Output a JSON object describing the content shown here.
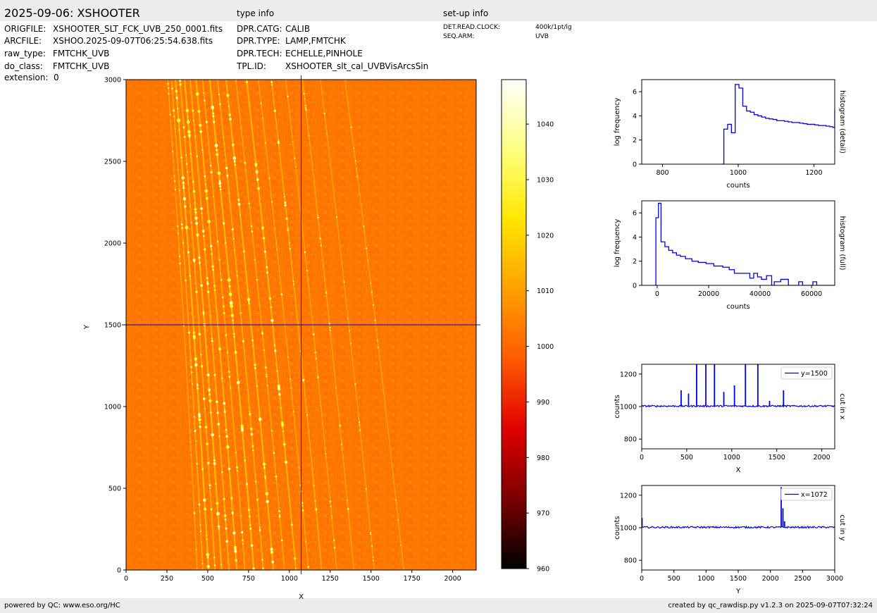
{
  "header": {
    "title": "2025-09-06: XSHOOTER",
    "type_info_label": "type info",
    "setup_info_label": "set-up info"
  },
  "file_info": [
    {
      "key": "ORIGFILE:",
      "value": "XSHOOTER_SLT_FCK_UVB_250_0001.fits"
    },
    {
      "key": "ARCFILE:",
      "value": "XSHOO.2025-09-07T06:25:54.638.fits"
    },
    {
      "key": "raw_type:",
      "value": "FMTCHK_UVB"
    },
    {
      "key": "do_class:",
      "value": "FMTCHK_UVB"
    },
    {
      "key": "extension:",
      "value": "0"
    }
  ],
  "type_info": [
    {
      "key": "DPR.CATG:",
      "value": "CALIB"
    },
    {
      "key": "DPR.TYPE:",
      "value": "LAMP,FMTCHK"
    },
    {
      "key": "DPR.TECH:",
      "value": "ECHELLE,PINHOLE"
    },
    {
      "key": "TPL.ID:",
      "value": "XSHOOTER_slt_cal_UVBVisArcsSin"
    }
  ],
  "setup_info": [
    {
      "key": "DET.READ.CLOCK:",
      "value": "400k/1pt/lg"
    },
    {
      "key": "SEQ.ARM:",
      "value": "UVB"
    }
  ],
  "footer": {
    "left": "powered by QC: www.eso.org/HC",
    "right": "created by qc_rawdisp.py v1.2.3 on 2025-09-07T07:32:24"
  },
  "chart_data": [
    {
      "type": "heatmap",
      "name": "raw-image",
      "xlabel": "X",
      "ylabel": "Y",
      "xlim": [
        0,
        2144
      ],
      "ylim": [
        0,
        3000
      ],
      "xticks": [
        0,
        250,
        500,
        750,
        1000,
        1250,
        1500,
        1750,
        2000
      ],
      "yticks": [
        0,
        500,
        1000,
        1500,
        2000,
        2500,
        3000
      ],
      "crosshair": {
        "x": 1072,
        "y": 1500
      },
      "background_level": 1003,
      "orders": [
        {
          "x_bottom": 435,
          "x_top": 255,
          "strength": 0.3
        },
        {
          "x_bottom": 470,
          "x_top": 278,
          "strength": 0.5
        },
        {
          "x_bottom": 505,
          "x_top": 302,
          "strength": 1.0
        },
        {
          "x_bottom": 545,
          "x_top": 330,
          "strength": 0.6
        },
        {
          "x_bottom": 585,
          "x_top": 358,
          "strength": 1.0
        },
        {
          "x_bottom": 630,
          "x_top": 392,
          "strength": 0.7
        },
        {
          "x_bottom": 678,
          "x_top": 428,
          "strength": 0.9
        },
        {
          "x_bottom": 728,
          "x_top": 468,
          "strength": 0.5
        },
        {
          "x_bottom": 782,
          "x_top": 512,
          "strength": 1.0
        },
        {
          "x_bottom": 840,
          "x_top": 560,
          "strength": 0.6
        },
        {
          "x_bottom": 902,
          "x_top": 612,
          "strength": 0.9
        },
        {
          "x_bottom": 970,
          "x_top": 672,
          "strength": 0.4
        },
        {
          "x_bottom": 1040,
          "x_top": 738,
          "strength": 0.8
        },
        {
          "x_bottom": 1117,
          "x_top": 810,
          "strength": 0.35
        },
        {
          "x_bottom": 1198,
          "x_top": 890,
          "strength": 0.5
        },
        {
          "x_bottom": 1290,
          "x_top": 978,
          "strength": 0.3
        },
        {
          "x_bottom": 1395,
          "x_top": 1080,
          "strength": 0.35
        },
        {
          "x_bottom": 1520,
          "x_top": 1190,
          "strength": 0.25
        },
        {
          "x_bottom": 1700,
          "x_top": 1340,
          "strength": 0.25
        }
      ]
    },
    {
      "type": "colorbar",
      "name": "colorbar",
      "range": [
        960,
        1048
      ],
      "ticks": [
        960,
        970,
        980,
        990,
        1000,
        1010,
        1020,
        1030,
        1040
      ],
      "colormap": [
        "#000000",
        "#7a0000",
        "#e00000",
        "#ff5a00",
        "#ffa000",
        "#ffe600",
        "#ffff80",
        "#ffffff"
      ]
    },
    {
      "type": "line",
      "name": "histogram-detail",
      "ylabel": "log frequency",
      "xlabel": "counts",
      "right_label": "histogram (detail)",
      "xlim": [
        745,
        1255
      ],
      "ylim": [
        0,
        7
      ],
      "xticks": [
        800,
        1000,
        1200
      ],
      "yticks": [
        0,
        2,
        4,
        6
      ],
      "color": "#0000ee",
      "x": [
        955,
        962,
        972,
        982,
        992,
        1002,
        1012,
        1022,
        1032,
        1042,
        1052,
        1062,
        1072,
        1082,
        1092,
        1102,
        1112,
        1122,
        1132,
        1142,
        1152,
        1162,
        1172,
        1182,
        1192,
        1202,
        1212,
        1222,
        1232,
        1242,
        1250,
        1255
      ],
      "y": [
        0,
        2.9,
        3.3,
        2.6,
        6.6,
        6.3,
        4.8,
        4.4,
        4.3,
        4.1,
        4.0,
        3.9,
        3.8,
        3.75,
        3.7,
        3.6,
        3.6,
        3.55,
        3.5,
        3.45,
        3.45,
        3.4,
        3.35,
        3.3,
        3.3,
        3.25,
        3.2,
        3.2,
        3.15,
        3.1,
        3.05,
        4.6
      ]
    },
    {
      "type": "line",
      "name": "histogram-full",
      "ylabel": "log frequency",
      "xlabel": "counts",
      "right_label": "histogram (full)",
      "xlim": [
        -6000,
        69000
      ],
      "ylim": [
        0,
        7
      ],
      "xticks": [
        0,
        20000,
        40000,
        60000
      ],
      "yticks": [
        0,
        2,
        4,
        6
      ],
      "color": "#0000ee",
      "x": [
        -1200,
        -500,
        500,
        1500,
        3000,
        4500,
        6000,
        7500,
        9000,
        11000,
        13500,
        16000,
        19000,
        22000,
        25500,
        28000,
        30000,
        33000,
        36000,
        37500,
        39000,
        40500,
        42500,
        44500,
        45500,
        46000,
        48000,
        51000,
        53500,
        55000,
        56500,
        58000,
        60500,
        62000,
        68000
      ],
      "y": [
        0,
        5.6,
        6.8,
        3.6,
        3.2,
        2.9,
        2.7,
        2.5,
        2.4,
        2.2,
        2.0,
        1.9,
        1.8,
        1.6,
        1.5,
        1.3,
        1.0,
        1.0,
        0.6,
        1.0,
        0.7,
        0.5,
        0.8,
        0,
        0.3,
        0.3,
        0.5,
        0,
        0,
        0.3,
        0,
        0,
        0.3,
        0,
        0
      ]
    },
    {
      "type": "line",
      "name": "cut-in-x",
      "ylabel": "counts",
      "xlabel": "X",
      "right_label": "cut in x",
      "legend": "y=1500",
      "legend_position": "top-right",
      "xlim": [
        0,
        2144
      ],
      "ylim": [
        740,
        1260
      ],
      "xticks": [
        0,
        500,
        1000,
        1500,
        2000
      ],
      "yticks": [
        800,
        1000,
        1200
      ],
      "color": "#0000ee",
      "baseline": 1003,
      "peaks": [
        {
          "x": 438,
          "y": 1100
        },
        {
          "x": 520,
          "y": 1080
        },
        {
          "x": 610,
          "y": 1300
        },
        {
          "x": 712,
          "y": 1300
        },
        {
          "x": 808,
          "y": 1300
        },
        {
          "x": 912,
          "y": 1090
        },
        {
          "x": 1030,
          "y": 1130
        },
        {
          "x": 1152,
          "y": 1300
        },
        {
          "x": 1290,
          "y": 1300
        },
        {
          "x": 1420,
          "y": 1035
        },
        {
          "x": 1575,
          "y": 1100
        }
      ]
    },
    {
      "type": "line",
      "name": "cut-in-y",
      "ylabel": "counts",
      "xlabel": "Y",
      "right_label": "cut in y",
      "legend": "x=1072",
      "legend_position": "top-right",
      "xlim": [
        0,
        3000
      ],
      "ylim": [
        740,
        1260
      ],
      "xticks": [
        0,
        500,
        1000,
        1500,
        2000,
        2500,
        3000
      ],
      "yticks": [
        800,
        1000,
        1200
      ],
      "color": "#0000ee",
      "baseline": 1003,
      "peaks": [
        {
          "x": 5,
          "y": 1060
        },
        {
          "x": 2168,
          "y": 1250
        },
        {
          "x": 2195,
          "y": 1120
        },
        {
          "x": 2220,
          "y": 1040
        }
      ]
    }
  ]
}
